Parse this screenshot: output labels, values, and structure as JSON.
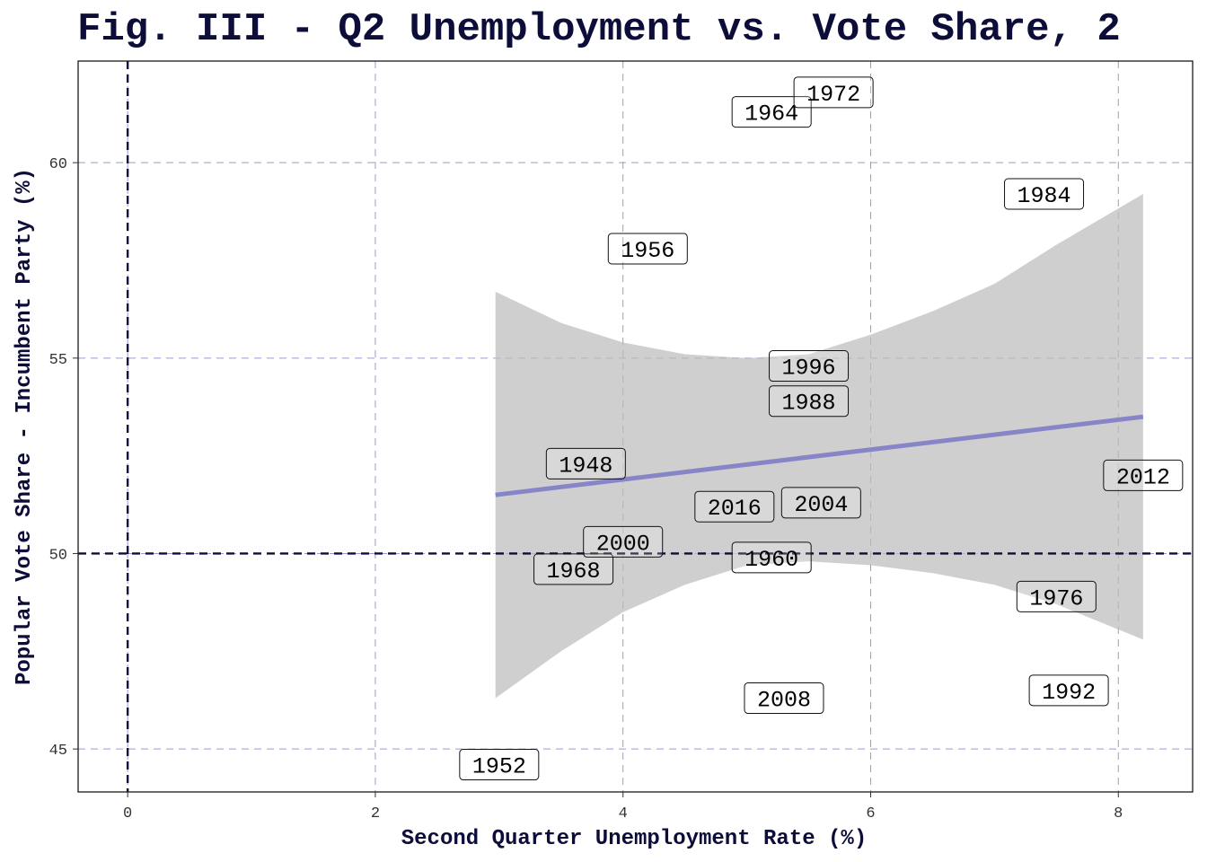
{
  "chart_data": {
    "type": "scatter",
    "title": "Fig. III - Q2 Unemployment vs. Vote Share, 2",
    "xlabel": "Second Quarter Unemployment Rate (%)",
    "ylabel": "Popular Vote Share - Incumbent Party (%)",
    "xlim": [
      -0.4,
      8.6
    ],
    "ylim": [
      43.9,
      62.6
    ],
    "x_ticks": [
      0,
      2,
      4,
      6,
      8
    ],
    "y_ticks": [
      45,
      50,
      55,
      60
    ],
    "grid": true,
    "reference_lines": {
      "x": 0,
      "y": 50
    },
    "points": [
      {
        "label": "1948",
        "x": 3.7,
        "y": 52.3
      },
      {
        "label": "1952",
        "x": 3.0,
        "y": 44.6
      },
      {
        "label": "1956",
        "x": 4.2,
        "y": 57.8
      },
      {
        "label": "1960",
        "x": 5.2,
        "y": 49.9
      },
      {
        "label": "1964",
        "x": 5.2,
        "y": 61.3
      },
      {
        "label": "1968",
        "x": 3.6,
        "y": 49.6
      },
      {
        "label": "1972",
        "x": 5.7,
        "y": 61.8
      },
      {
        "label": "1976",
        "x": 7.5,
        "y": 48.9
      },
      {
        "label": "1984",
        "x": 7.4,
        "y": 59.2
      },
      {
        "label": "1988",
        "x": 5.5,
        "y": 53.9
      },
      {
        "label": "1992",
        "x": 7.6,
        "y": 46.5
      },
      {
        "label": "1996",
        "x": 5.5,
        "y": 54.8
      },
      {
        "label": "2000",
        "x": 4.0,
        "y": 50.3
      },
      {
        "label": "2004",
        "x": 5.6,
        "y": 51.3
      },
      {
        "label": "2008",
        "x": 5.3,
        "y": 46.3
      },
      {
        "label": "2012",
        "x": 8.2,
        "y": 52.0
      },
      {
        "label": "2016",
        "x": 4.9,
        "y": 51.2
      }
    ],
    "trend": {
      "x": [
        2.97,
        8.2
      ],
      "y": [
        51.5,
        53.5
      ],
      "band": [
        {
          "x": 2.97,
          "lo": 46.3,
          "hi": 56.7
        },
        {
          "x": 3.5,
          "lo": 47.5,
          "hi": 55.9
        },
        {
          "x": 4.0,
          "lo": 48.5,
          "hi": 55.4
        },
        {
          "x": 4.5,
          "lo": 49.2,
          "hi": 55.1
        },
        {
          "x": 5.0,
          "lo": 49.7,
          "hi": 55.0
        },
        {
          "x": 5.5,
          "lo": 49.8,
          "hi": 55.1
        },
        {
          "x": 6.0,
          "lo": 49.7,
          "hi": 55.6
        },
        {
          "x": 6.5,
          "lo": 49.5,
          "hi": 56.2
        },
        {
          "x": 7.0,
          "lo": 49.2,
          "hi": 56.9
        },
        {
          "x": 7.5,
          "lo": 48.7,
          "hi": 57.9
        },
        {
          "x": 8.2,
          "lo": 47.8,
          "hi": 59.2
        }
      ],
      "line_color": "#8585c8",
      "band_color": "#bcbcbc"
    },
    "colors": {
      "title": "#0d0d3a",
      "grid": "#9a9ad0",
      "reference": "#0d0d3a",
      "panel_border": "#1a1a1a"
    }
  }
}
